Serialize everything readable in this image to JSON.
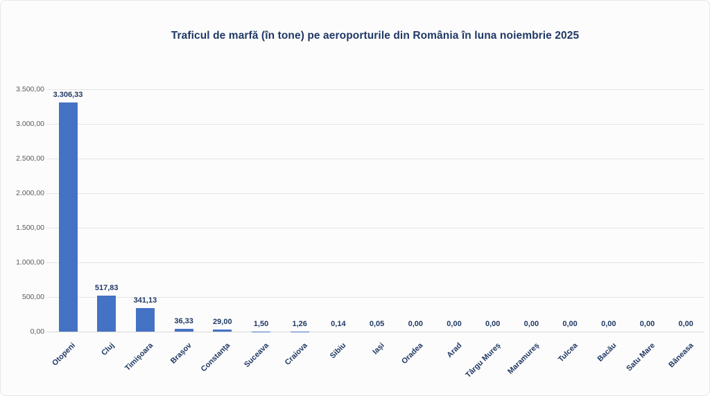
{
  "chart_data": {
    "type": "bar",
    "title": "Traficul de marfă (în tone) pe aeroporturile din România în luna noiembrie 2025",
    "categories": [
      "Otopeni",
      "Cluj",
      "Timișoara",
      "Brașov",
      "Constanța",
      "Suceava",
      "Craiova",
      "Sibiu",
      "Iași",
      "Oradea",
      "Arad",
      "Târgu Mureș",
      "Maramureș",
      "Tulcea",
      "Bacău",
      "Satu Mare",
      "Băneasa"
    ],
    "values": [
      3306.33,
      517.83,
      341.13,
      36.33,
      29.0,
      1.5,
      1.26,
      0.14,
      0.05,
      0,
      0,
      0,
      0,
      0,
      0,
      0,
      0
    ],
    "value_labels": [
      "3.306,33",
      "517,83",
      "341,13",
      "36,33",
      "29,00",
      "1,50",
      "1,26",
      "0,14",
      "0,05",
      "0,00",
      "0,00",
      "0,00",
      "0,00",
      "0,00",
      "0,00",
      "0,00",
      "0,00"
    ],
    "xlabel": "",
    "ylabel": "",
    "ylim": [
      0,
      3500
    ],
    "ytick_values": [
      0,
      500,
      1000,
      1500,
      2000,
      2500,
      3000,
      3500
    ],
    "ytick_labels": [
      "0,00",
      "500,00",
      "1.000,00",
      "1.500,00",
      "2.000,00",
      "2.500,00",
      "3.000,00",
      "3.500,00"
    ],
    "grid": true,
    "legend": "none",
    "colors": {
      "bar": "#4472C4",
      "title": "#1F3864",
      "value_label": "#1F3864",
      "x_tick": "#1F3864",
      "y_tick": "#595959",
      "gridline": "#E4E4E4",
      "axis_line": "#D8D8D8",
      "background": "#FCFCFC"
    }
  }
}
